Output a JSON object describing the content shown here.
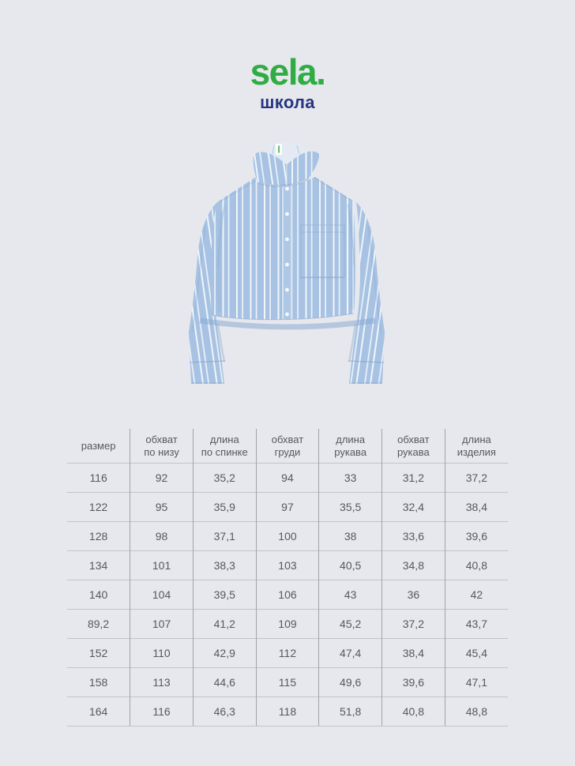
{
  "page": {
    "background": "#e7e8ed"
  },
  "brand": {
    "logo": "sela.",
    "subtitle": "школа",
    "logo_color": "#2fad43",
    "subtitle_color": "#26357f"
  },
  "product": {
    "name": "полосатая школьная рубашка",
    "base_color": "#a7c2e2",
    "stripe_color": "#f1f5fa"
  },
  "size_table": {
    "text_color": "#55585e",
    "column_divider_color": "#a0a3a9",
    "row_divider_color": "#c0c3c8",
    "headers": [
      "размер",
      "обхват\nпо низу",
      "длина\nпо спинке",
      "обхват\nгруди",
      "длина\nрукава",
      "обхват\nрукава",
      "длина\nизделия"
    ],
    "rows": [
      [
        "116",
        "92",
        "35,2",
        "94",
        "33",
        "31,2",
        "37,2"
      ],
      [
        "122",
        "95",
        "35,9",
        "97",
        "35,5",
        "32,4",
        "38,4"
      ],
      [
        "128",
        "98",
        "37,1",
        "100",
        "38",
        "33,6",
        "39,6"
      ],
      [
        "134",
        "101",
        "38,3",
        "103",
        "40,5",
        "34,8",
        "40,8"
      ],
      [
        "140",
        "104",
        "39,5",
        "106",
        "43",
        "36",
        "42"
      ],
      [
        "89,2",
        "107",
        "41,2",
        "109",
        "45,2",
        "37,2",
        "43,7"
      ],
      [
        "152",
        "110",
        "42,9",
        "112",
        "47,4",
        "38,4",
        "45,4"
      ],
      [
        "158",
        "113",
        "44,6",
        "115",
        "49,6",
        "39,6",
        "47,1"
      ],
      [
        "164",
        "116",
        "46,3",
        "118",
        "51,8",
        "40,8",
        "48,8"
      ]
    ]
  }
}
